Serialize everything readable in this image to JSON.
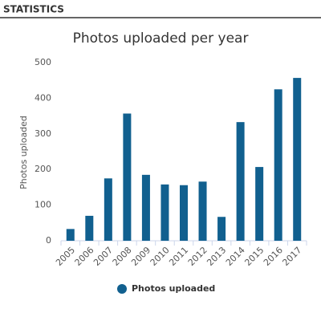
{
  "header": {
    "title": "STATISTICS"
  },
  "chart_data": {
    "type": "bar",
    "title": "Photos uploaded per year",
    "y_label": "Photos uploaded",
    "categories": [
      "2005",
      "2006",
      "2007",
      "2008",
      "2009",
      "2010",
      "2011",
      "2012",
      "2013",
      "2014",
      "2015",
      "2016",
      "2017"
    ],
    "series": [
      {
        "name": "Photos uploaded",
        "color": "#11608f",
        "values": [
          33,
          70,
          175,
          357,
          185,
          158,
          156,
          166,
          67,
          333,
          207,
          425,
          457
        ]
      }
    ],
    "ylim": [
      0,
      500
    ],
    "yticks": [
      0,
      100,
      200,
      300,
      400,
      500
    ],
    "grid": false,
    "legend": "bottom"
  }
}
